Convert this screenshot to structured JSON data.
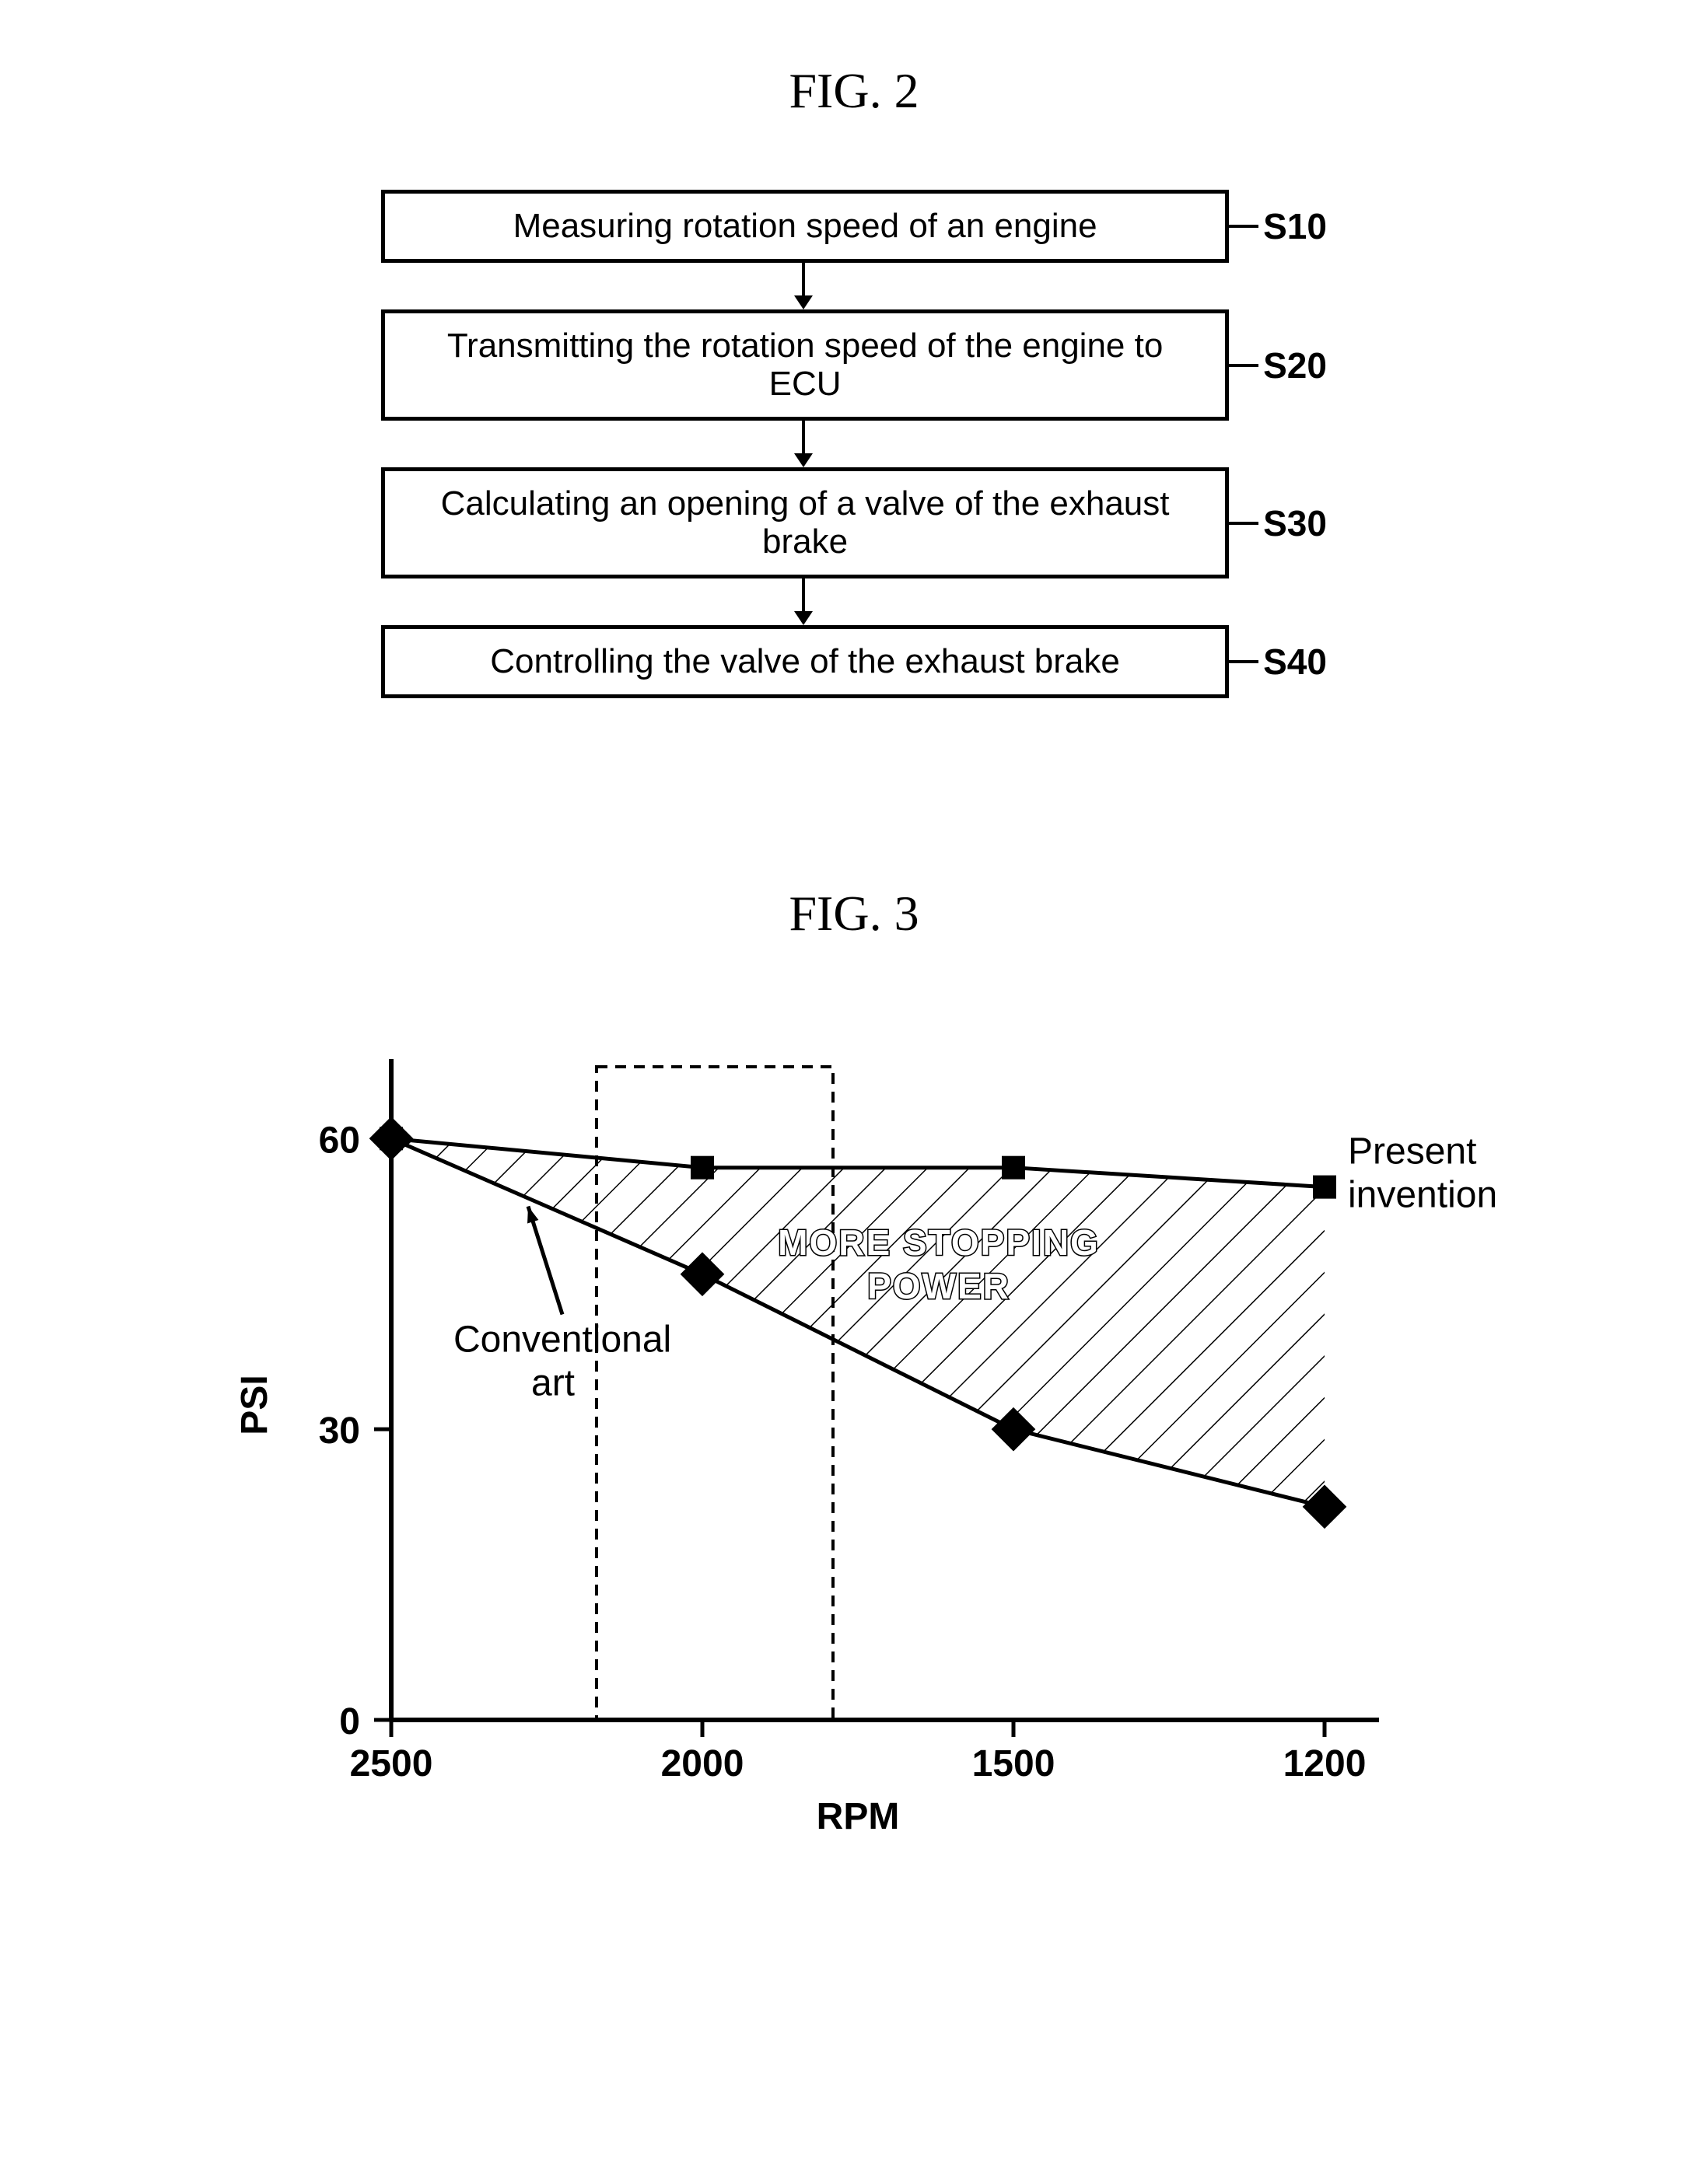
{
  "fig2": {
    "title": "FIG. 2",
    "steps": [
      {
        "label": "S10",
        "text": "Measuring rotation speed of an engine"
      },
      {
        "label": "S20",
        "text": "Transmitting the rotation speed of the engine to ECU"
      },
      {
        "label": "S30",
        "text": "Calculating an opening of a valve of the exhaust brake"
      },
      {
        "label": "S40",
        "text": "Controlling the valve of the exhaust brake"
      }
    ]
  },
  "fig3": {
    "title": "FIG. 3",
    "chart": {
      "type": "line",
      "x_axis": {
        "label": "RPM",
        "ticks": [
          2500,
          2000,
          1500,
          1200
        ],
        "fontsize": 48,
        "fontweight": "bold"
      },
      "y_axis": {
        "label": "PSI",
        "ticks": [
          0,
          30,
          60
        ],
        "ylim": [
          0,
          65
        ],
        "fontsize": 48,
        "fontweight": "bold"
      },
      "series": {
        "present": {
          "label": "Present\ninvention",
          "marker": "square",
          "marker_size": 30,
          "line_width": 5,
          "color": "#000000",
          "points": [
            {
              "rpm": 2500,
              "psi": 60
            },
            {
              "rpm": 2000,
              "psi": 57
            },
            {
              "rpm": 1500,
              "psi": 57
            },
            {
              "rpm": 1200,
              "psi": 55
            }
          ]
        },
        "conventional": {
          "label": "Conventional\nart",
          "marker": "diamond",
          "marker_size": 34,
          "line_width": 5,
          "color": "#000000",
          "points": [
            {
              "rpm": 2500,
              "psi": 60
            },
            {
              "rpm": 2000,
              "psi": 46
            },
            {
              "rpm": 1500,
              "psi": 30
            },
            {
              "rpm": 1200,
              "psi": 22
            }
          ]
        }
      },
      "highlight_box": {
        "rpm_from": 2170,
        "rpm_to": 1790,
        "dash": "14 10",
        "stroke": "#000000",
        "stroke_width": 4
      },
      "hatched_region_label": "MORE STOPPING\nPOWER",
      "hatch_spacing": 38,
      "background_color": "#ffffff",
      "axis_color": "#000000",
      "axis_width": 6
    }
  }
}
